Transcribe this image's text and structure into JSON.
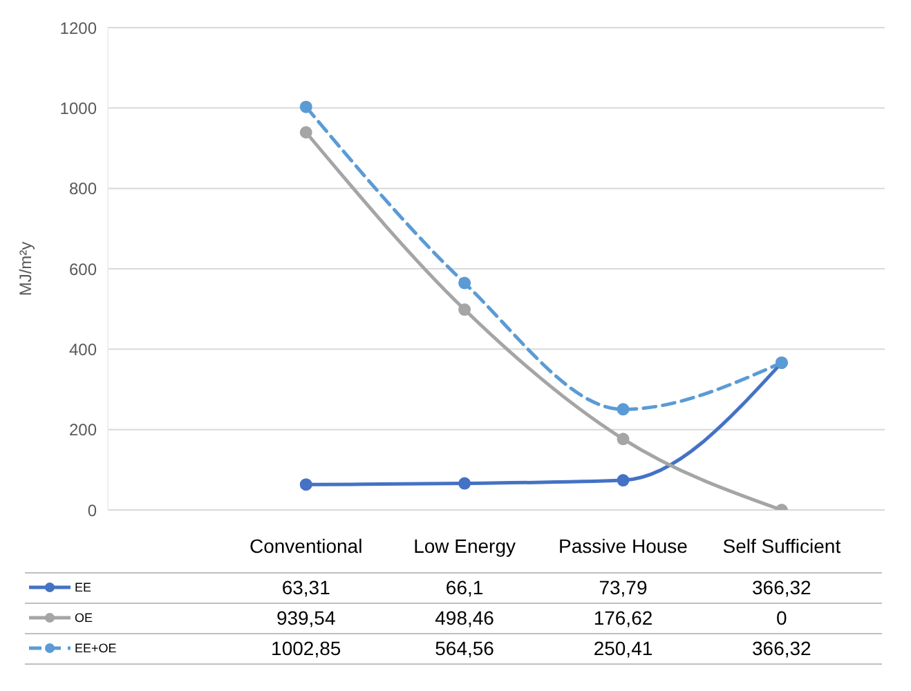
{
  "chart_data": {
    "type": "line",
    "ylabel": "MJ/m²y",
    "categories": [
      "Conventional",
      "Low Energy",
      "Passive House",
      "Self Sufficient"
    ],
    "series": [
      {
        "name": "EE",
        "color": "#4472c4",
        "values": [
          63.31,
          66.1,
          73.79,
          366.32
        ],
        "value_labels": [
          "63,31",
          "66,1",
          "73,79",
          "366,32"
        ],
        "line_style": "solid"
      },
      {
        "name": "OE",
        "color": "#a5a5a5",
        "values": [
          939.54,
          498.46,
          176.62,
          0
        ],
        "value_labels": [
          "939,54",
          "498,46",
          "176,62",
          "0"
        ],
        "line_style": "solid"
      },
      {
        "name": "EE+OE",
        "color": "#5b9bd5",
        "values": [
          1002.85,
          564.56,
          250.41,
          366.32
        ],
        "value_labels": [
          "1002,85",
          "564,56",
          "250,41",
          "366,32"
        ],
        "line_style": "dashed"
      }
    ],
    "ylim": [
      0,
      1200
    ],
    "yticks": [
      0,
      200,
      400,
      600,
      800,
      1000,
      1200
    ],
    "grid": "y",
    "marker": "circle",
    "legend": "bottom"
  }
}
